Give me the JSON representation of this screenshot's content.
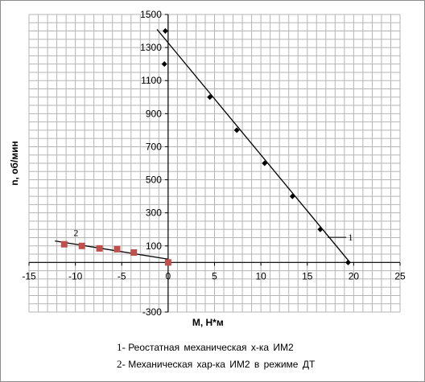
{
  "chart_data": {
    "type": "scatter",
    "xlabel": "M, Н*м",
    "ylabel": "n, об/мин",
    "xlim": [
      -15,
      25
    ],
    "ylim": [
      -300,
      1500
    ],
    "x_ticks": [
      -15,
      -10,
      -5,
      0,
      5,
      10,
      15,
      20,
      25
    ],
    "y_ticks": [
      -300,
      100,
      300,
      500,
      700,
      900,
      1100,
      1300,
      1500
    ],
    "grid": true,
    "series": [
      {
        "label": "1",
        "marker": "diamond",
        "color": "#000000",
        "points": [
          {
            "x": -0.3,
            "y": 1400
          },
          {
            "x": -0.4,
            "y": 1200
          },
          {
            "x": 4.5,
            "y": 1000
          },
          {
            "x": 7.4,
            "y": 800
          },
          {
            "x": 10.4,
            "y": 600
          },
          {
            "x": 13.4,
            "y": 400
          },
          {
            "x": 16.4,
            "y": 200
          },
          {
            "x": 19.4,
            "y": 0
          }
        ],
        "trendline": {
          "x": [
            -1.2,
            19.6
          ],
          "y": [
            1410,
            0
          ]
        }
      },
      {
        "label": "2",
        "marker": "square",
        "color": "#c0504d",
        "points": [
          {
            "x": -11.2,
            "y": 110
          },
          {
            "x": -9.3,
            "y": 100
          },
          {
            "x": -7.4,
            "y": 85
          },
          {
            "x": -5.5,
            "y": 80
          },
          {
            "x": -3.7,
            "y": 60
          },
          {
            "x": 0,
            "y": 0
          }
        ],
        "trendline": {
          "x": [
            -12.2,
            0
          ],
          "y": [
            130,
            20
          ]
        }
      }
    ]
  },
  "legend": [
    {
      "num": "1-",
      "text": "Реостатная механическая х-ка ИМ2"
    },
    {
      "num": "2-",
      "text": "Механическая хар-ка ИМ2 в режиме ДТ"
    }
  ],
  "colors": {
    "grid": "#b5b5b5",
    "series1": "#000000",
    "series2": "#c0504d"
  }
}
